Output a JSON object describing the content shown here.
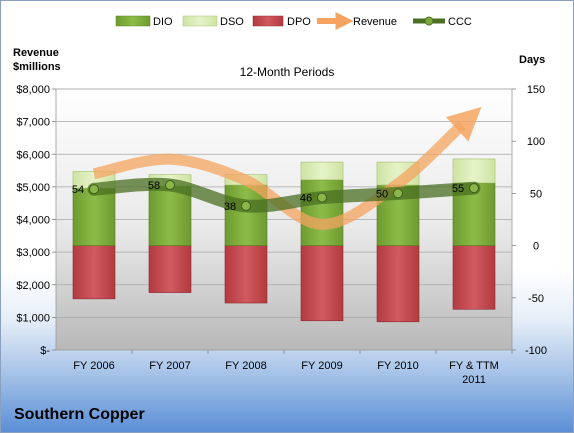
{
  "company": "Southern Copper",
  "colors": {
    "dio": "#7aa83a",
    "dso": "#d8ebb0",
    "dpo": "#c0454a",
    "revenue": "#f4a460",
    "ccc": "#4a6f22"
  },
  "chart_data": {
    "type": "bar",
    "title": "12-Month Periods",
    "left_axis_label_line1": "Revenue",
    "left_axis_label_line2": "$millions",
    "right_axis_label": "Days",
    "categories": [
      [
        "FY 2006"
      ],
      [
        "FY 2007"
      ],
      [
        "FY 2008"
      ],
      [
        "FY 2009"
      ],
      [
        "FY 2010"
      ],
      [
        "FY & TTM",
        "2011"
      ]
    ],
    "left_ylim": [
      0,
      8000
    ],
    "left_ticks": [
      "$-",
      "$1,000",
      "$2,000",
      "$3,000",
      "$4,000",
      "$5,000",
      "$6,000",
      "$7,000",
      "$8,000"
    ],
    "right_ylim": [
      -100,
      150
    ],
    "right_ticks": [
      "-100",
      "-50",
      "0",
      "50",
      "100",
      "150"
    ],
    "legend_position": "top",
    "grid": true,
    "series": [
      {
        "name": "DIO",
        "type": "stacked-bar",
        "values": [
          55,
          57,
          58,
          63,
          58,
          60
        ]
      },
      {
        "name": "DSO",
        "type": "stacked-bar",
        "values": [
          16,
          11,
          10,
          17,
          22,
          23
        ]
      },
      {
        "name": "DPO",
        "type": "stacked-bar",
        "values": [
          -51,
          -45,
          -55,
          -72,
          -73,
          -61
        ]
      },
      {
        "name": "Revenue",
        "type": "line-arrow",
        "values": [
          5400,
          5850,
          5200,
          3850,
          5100,
          6900
        ]
      },
      {
        "name": "CCC",
        "type": "line",
        "values": [
          54,
          58,
          38,
          46,
          50,
          55
        ]
      }
    ],
    "ccc_labels": [
      "54",
      "58",
      "38",
      "46",
      "50",
      "55"
    ]
  }
}
